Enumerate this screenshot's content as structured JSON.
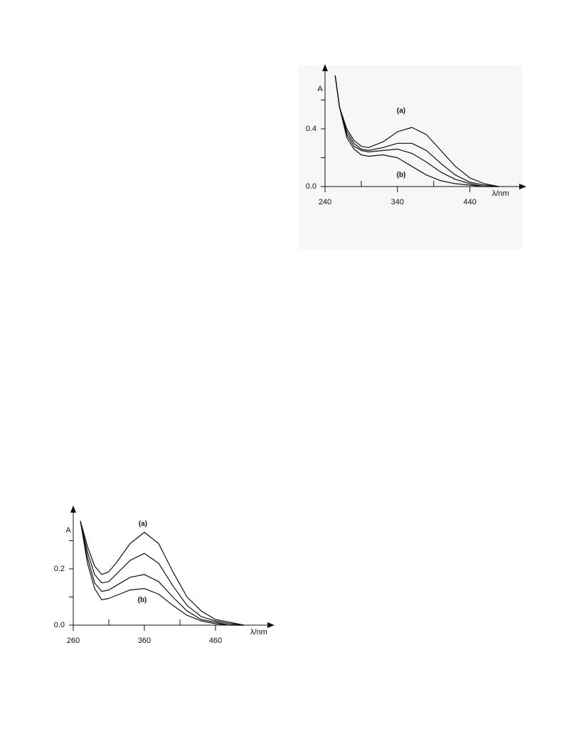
{
  "chart_data": [
    {
      "type": "line",
      "color": "#111",
      "x_label": "λ/nm",
      "y_label": "A",
      "annotations": [
        "(a)",
        "(b)"
      ],
      "x": [
        254,
        260,
        270,
        280,
        290,
        300,
        320,
        340,
        360,
        380,
        400,
        420,
        440,
        460,
        480
      ],
      "series": [
        {
          "values": [
            0.77,
            0.55,
            0.4,
            0.32,
            0.28,
            0.27,
            0.31,
            0.38,
            0.41,
            0.36,
            0.25,
            0.14,
            0.06,
            0.02,
            0.0
          ]
        },
        {
          "values": [
            0.77,
            0.55,
            0.38,
            0.3,
            0.26,
            0.25,
            0.27,
            0.3,
            0.3,
            0.25,
            0.16,
            0.08,
            0.03,
            0.01,
            0.0
          ]
        },
        {
          "values": [
            0.77,
            0.55,
            0.36,
            0.28,
            0.25,
            0.24,
            0.25,
            0.26,
            0.23,
            0.17,
            0.1,
            0.05,
            0.02,
            0.0,
            0.0
          ]
        },
        {
          "values": [
            0.77,
            0.55,
            0.34,
            0.26,
            0.22,
            0.21,
            0.22,
            0.2,
            0.14,
            0.08,
            0.04,
            0.02,
            0.01,
            0.0,
            0.0
          ]
        }
      ],
      "xlim": [
        240,
        512
      ],
      "ylim": [
        0,
        0.82
      ],
      "xticks": [
        240,
        340,
        440
      ],
      "xticks_minor": [
        290,
        390
      ],
      "yticks": [
        {
          "value": 0,
          "label": "0.0"
        },
        {
          "value": 0.4,
          "label": "0.4"
        }
      ],
      "yticks_minor": [
        0.2,
        0.6
      ]
    },
    {
      "type": "line",
      "color": "#111",
      "x_label": "λ/nm",
      "y_label": "A",
      "annotations": [
        "(a)",
        "(b)"
      ],
      "x": [
        270,
        280,
        290,
        300,
        310,
        320,
        340,
        360,
        380,
        400,
        420,
        440,
        460,
        480,
        500
      ],
      "series": [
        {
          "values": [
            0.37,
            0.28,
            0.21,
            0.18,
            0.19,
            0.22,
            0.29,
            0.33,
            0.29,
            0.19,
            0.1,
            0.05,
            0.02,
            0.01,
            0.0
          ]
        },
        {
          "values": [
            0.37,
            0.26,
            0.18,
            0.15,
            0.155,
            0.18,
            0.23,
            0.255,
            0.22,
            0.14,
            0.07,
            0.03,
            0.015,
            0.005,
            0.0
          ]
        },
        {
          "values": [
            0.37,
            0.24,
            0.15,
            0.12,
            0.125,
            0.14,
            0.17,
            0.18,
            0.155,
            0.1,
            0.05,
            0.02,
            0.01,
            0.0,
            0.0
          ]
        },
        {
          "values": [
            0.37,
            0.22,
            0.13,
            0.09,
            0.095,
            0.105,
            0.125,
            0.13,
            0.11,
            0.07,
            0.035,
            0.015,
            0.005,
            0.0,
            0.0
          ]
        }
      ],
      "xlim": [
        260,
        537
      ],
      "ylim": [
        0,
        0.41
      ],
      "xticks": [
        260,
        360,
        460
      ],
      "xticks_minor": [
        310,
        410
      ],
      "yticks": [
        {
          "value": 0,
          "label": "0.0"
        },
        {
          "value": 0.2,
          "label": "0.2"
        }
      ],
      "yticks_minor": [
        0.1,
        0.3
      ]
    }
  ]
}
